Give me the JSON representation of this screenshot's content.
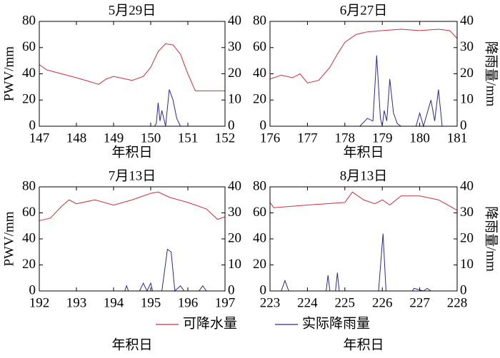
{
  "chart_data": [
    {
      "type": "line",
      "title": "5月29日",
      "xlabel": "年积日",
      "ylabel": "PWV/mm",
      "xlim": [
        147,
        152
      ],
      "xticks": [
        147,
        148,
        149,
        150,
        151,
        152
      ],
      "ylim": [
        0,
        80
      ],
      "yticks": [
        0,
        20,
        40,
        60,
        80
      ],
      "y2lim": [
        0,
        40
      ],
      "y2ticks": [
        0,
        10,
        20,
        30,
        40
      ],
      "series": [
        {
          "color": "#c8323c",
          "x": [
            147,
            147.2,
            148,
            148.6,
            148.8,
            149,
            149.5,
            149.8,
            150,
            150.2,
            150.4,
            150.6,
            150.8,
            151,
            151.2,
            152
          ],
          "values": [
            47,
            43,
            37,
            32,
            36,
            38,
            35,
            38,
            45,
            57,
            63,
            62,
            55,
            40,
            27,
            27
          ]
        },
        {
          "color": "#2a2a8c",
          "axis": "y2",
          "x": [
            147,
            150.1,
            150.15,
            150.2,
            150.25,
            150.3,
            150.4,
            150.5,
            150.6,
            150.7,
            150.8,
            152
          ],
          "values": [
            0,
            0,
            1,
            9,
            2,
            6,
            0,
            14,
            10,
            3,
            0,
            0
          ]
        }
      ]
    },
    {
      "type": "line",
      "title": "6月27日",
      "xlabel": "年积日",
      "y2label": "降雨量/mm",
      "xlim": [
        176,
        181
      ],
      "xticks": [
        176,
        177,
        178,
        179,
        180,
        181
      ],
      "ylim": [
        0,
        80
      ],
      "yticks": [
        0,
        20,
        40,
        60,
        80
      ],
      "y2lim": [
        0,
        40
      ],
      "y2ticks": [
        0,
        10,
        20,
        30,
        40
      ],
      "series": [
        {
          "color": "#c8323c",
          "x": [
            176,
            176.3,
            176.6,
            176.8,
            177,
            177.3,
            177.6,
            177.8,
            178,
            178.3,
            178.6,
            179,
            179.5,
            180,
            180.5,
            180.8,
            181
          ],
          "values": [
            36,
            39,
            37,
            40,
            33,
            35,
            45,
            55,
            64,
            70,
            72,
            73,
            74,
            73,
            74,
            73,
            67
          ]
        },
        {
          "color": "#2a2a8c",
          "axis": "y2",
          "x": [
            176,
            178.4,
            178.6,
            178.75,
            178.85,
            178.95,
            179,
            179.05,
            179.12,
            179.2,
            179.3,
            179.4,
            179.5,
            179.9,
            180,
            180.1,
            180.3,
            180.4,
            180.5,
            180.6,
            181
          ],
          "values": [
            0,
            0,
            3,
            2,
            27,
            3,
            0,
            6,
            2,
            18,
            5,
            1,
            0,
            0,
            5,
            0,
            10,
            2,
            14,
            0,
            0
          ]
        }
      ]
    },
    {
      "type": "line",
      "title": "7月13日",
      "xlabel": "年积日",
      "ylabel": "PWV/mm",
      "xlim": [
        192,
        197
      ],
      "xticks": [
        192,
        193,
        194,
        195,
        196,
        197
      ],
      "ylim": [
        0,
        80
      ],
      "yticks": [
        0,
        20,
        40,
        60,
        80
      ],
      "y2lim": [
        0,
        40
      ],
      "y2ticks": [
        0,
        10,
        20,
        30,
        40
      ],
      "series": [
        {
          "color": "#c8323c",
          "x": [
            192,
            192.3,
            192.6,
            192.8,
            193,
            193.5,
            194,
            194.5,
            194.8,
            195,
            195.2,
            195.5,
            196,
            196.5,
            196.8,
            197
          ],
          "values": [
            54,
            56,
            65,
            70,
            67,
            70,
            66,
            70,
            73,
            75,
            76,
            72,
            68,
            63,
            55,
            57
          ]
        },
        {
          "color": "#2a2a8c",
          "axis": "y2",
          "x": [
            192,
            194.3,
            194.35,
            194.4,
            194.7,
            194.8,
            194.9,
            195,
            195.05,
            195.3,
            195.45,
            195.55,
            195.65,
            195.8,
            195.9,
            196.3,
            196.4,
            196.5,
            197
          ],
          "values": [
            0,
            0,
            2,
            0,
            0,
            3,
            0,
            3,
            0,
            0,
            16,
            15,
            0,
            2,
            0,
            0,
            2,
            0,
            0
          ]
        }
      ]
    },
    {
      "type": "line",
      "title": "8月13日",
      "xlabel": "年积日",
      "y2label": "降雨量/mm",
      "xlim": [
        223,
        228
      ],
      "xticks": [
        223,
        224,
        225,
        226,
        227,
        228
      ],
      "ylim": [
        0,
        80
      ],
      "yticks": [
        0,
        20,
        40,
        60,
        80
      ],
      "y2lim": [
        0,
        40
      ],
      "y2ticks": [
        0,
        10,
        20,
        30,
        40
      ],
      "series": [
        {
          "color": "#c8323c",
          "x": [
            223,
            223.1,
            224,
            225,
            225.2,
            225.5,
            225.8,
            226,
            226.2,
            226.5,
            227,
            227.5,
            228
          ],
          "values": [
            68,
            64,
            66,
            68,
            76,
            70,
            67,
            70,
            66,
            73,
            73,
            70,
            62
          ]
        },
        {
          "color": "#2a2a8c",
          "axis": "y2",
          "x": [
            223,
            223.3,
            223.4,
            223.5,
            224.5,
            224.55,
            224.6,
            224.75,
            224.8,
            224.85,
            225.9,
            226.02,
            226.1,
            226.8,
            226.85,
            227.1,
            227.2,
            227.3,
            228
          ],
          "values": [
            0,
            0,
            4,
            0,
            0,
            6,
            0,
            0,
            7,
            0,
            0,
            22,
            0,
            0,
            1,
            0,
            1,
            0,
            0
          ]
        }
      ]
    }
  ],
  "legend": [
    {
      "name": "可降水量",
      "color": "#c8323c"
    },
    {
      "name": "实际降雨量",
      "color": "#2a2a8c"
    }
  ]
}
